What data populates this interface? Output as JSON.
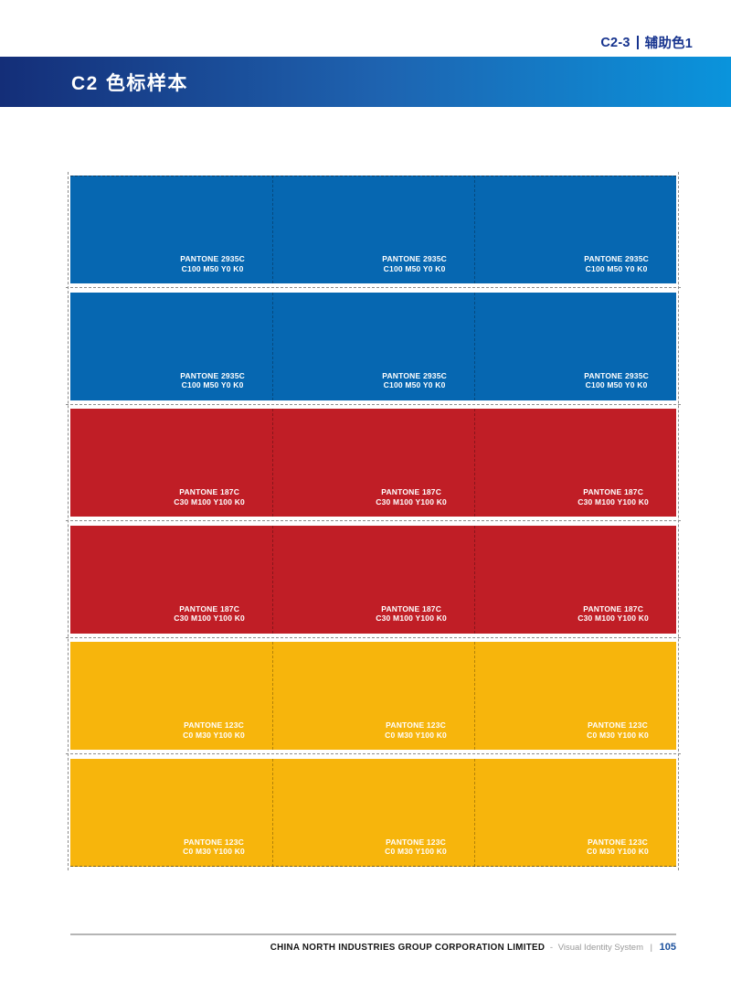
{
  "header": {
    "section_code": "C2-3",
    "section_label": "辅助色1"
  },
  "title": {
    "code": "C2",
    "text": "色标样本"
  },
  "colors": {
    "blue_swatch": "#0667b1",
    "red_swatch": "#c01e26",
    "yellow_swatch": "#f7b50c",
    "bar_gradient_start": "#142e78",
    "bar_gradient_mid": "#1e63b0",
    "bar_gradient_end": "#0a94dc",
    "header_text": "#16338e",
    "page_number_color": "#1a4f9c"
  },
  "swatch_rows": [
    {
      "pantone": "PANTONE 2935C",
      "cmyk": "C100 M50 Y0 K0",
      "color": "#0667b1"
    },
    {
      "pantone": "PANTONE 2935C",
      "cmyk": "C100 M50 Y0 K0",
      "color": "#0667b1"
    },
    {
      "pantone": "PANTONE 187C",
      "cmyk": "C30 M100 Y100 K0",
      "color": "#c01e26"
    },
    {
      "pantone": "PANTONE 187C",
      "cmyk": "C30 M100 Y100 K0",
      "color": "#c01e26"
    },
    {
      "pantone": "PANTONE 123C",
      "cmyk": "C0 M30 Y100 K0",
      "color": "#f7b50c"
    },
    {
      "pantone": "PANTONE 123C",
      "cmyk": "C0 M30 Y100 K0",
      "color": "#f7b50c"
    }
  ],
  "swatch_columns_per_row": 3,
  "footer": {
    "company": "CHINA NORTH INDUSTRIES GROUP CORPORATION LIMITED",
    "separator": "-",
    "system": "Visual Identity System",
    "divider": "|",
    "page_number": "105"
  }
}
